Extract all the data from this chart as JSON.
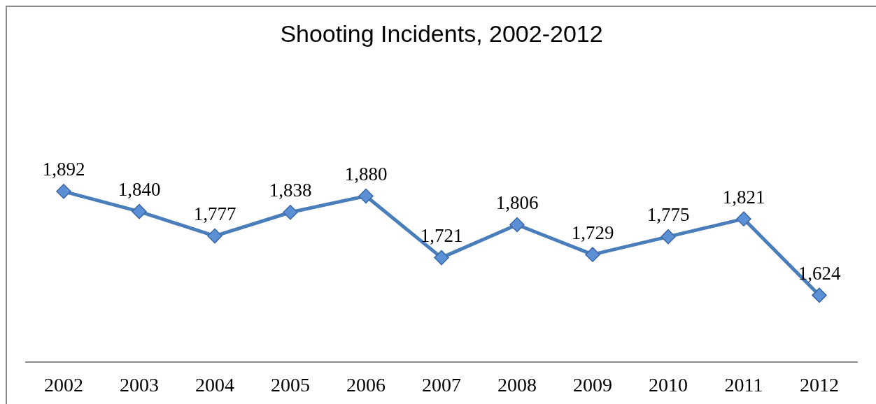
{
  "chart_data": {
    "type": "line",
    "title": "Shooting Incidents, 2002-2012",
    "categories": [
      "2002",
      "2003",
      "2004",
      "2005",
      "2006",
      "2007",
      "2008",
      "2009",
      "2010",
      "2011",
      "2012"
    ],
    "series": [
      {
        "color": "#4a7ebb",
        "values": [
          1892,
          1840,
          1777,
          1838,
          1880,
          1721,
          1806,
          1729,
          1775,
          1821,
          1624
        ],
        "value_labels": [
          "1,892",
          "1,840",
          "1,777",
          "1,838",
          "1,880",
          "1,721",
          "1,806",
          "1,729",
          "1,775",
          "1,821",
          "1,624"
        ]
      }
    ],
    "tick_labels": "x",
    "marker": "diamond",
    "line_style": "solid"
  }
}
